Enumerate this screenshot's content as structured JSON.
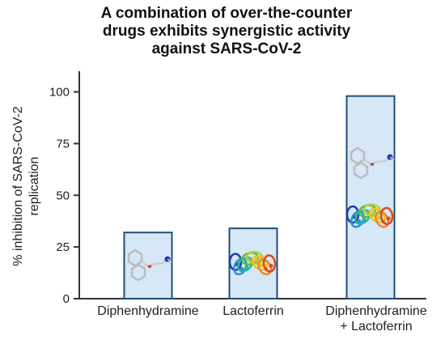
{
  "chart_data": {
    "type": "bar",
    "title_lines": [
      "A combination of over-the-counter",
      "drugs exhibits synergistic activity",
      "against SARS-CoV-2"
    ],
    "ylabel_lines": [
      "% inhibition of SARS-CoV-2",
      "replication"
    ],
    "xlabel": "",
    "categories": [
      {
        "lines": [
          "Diphenhydramine"
        ]
      },
      {
        "lines": [
          "Lactoferrin"
        ]
      },
      {
        "lines": [
          "Diphenhydramine",
          "+ Lactoferrin"
        ]
      }
    ],
    "values": [
      32,
      34,
      98
    ],
    "ylim": [
      0,
      110
    ],
    "yticks": [
      0,
      25,
      50,
      75,
      100
    ],
    "grid": false,
    "legend": "none",
    "bar_fill": "#d6e7f7",
    "bar_stroke": "#1f4e79",
    "bar_images": [
      [
        "small-molecule-structure"
      ],
      [
        "protein-ribbon-structure"
      ],
      [
        "small-molecule-structure",
        "protein-ribbon-structure"
      ]
    ]
  }
}
